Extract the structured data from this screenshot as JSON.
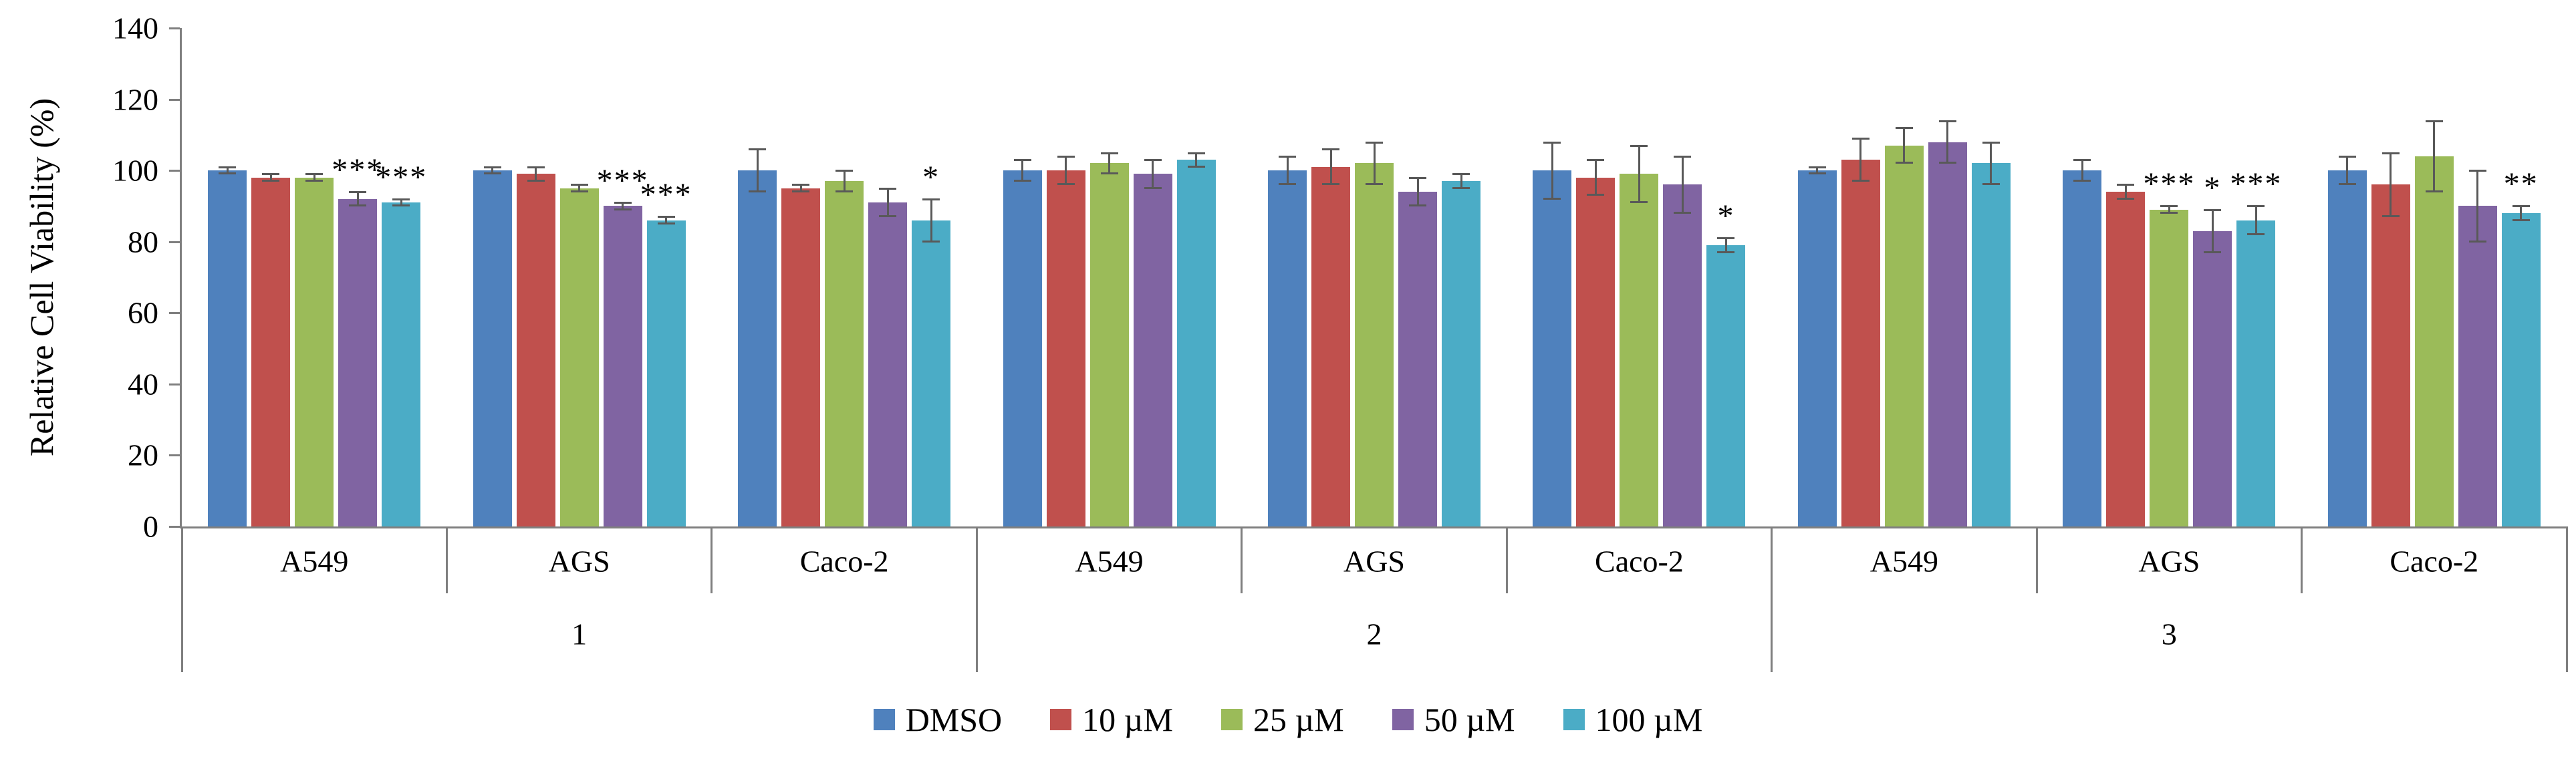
{
  "chart_data": {
    "type": "bar",
    "title": "",
    "ylabel": "Relative Cell Viability (%)",
    "xlabel": "",
    "ylim": [
      0,
      140
    ],
    "yticks": [
      0,
      20,
      40,
      60,
      80,
      100,
      120,
      140
    ],
    "grid": false,
    "legend_position": "bottom",
    "series": [
      {
        "name": "DMSO",
        "color": "#4F81BD"
      },
      {
        "name": "10 µM",
        "color": "#C0504D"
      },
      {
        "name": "25 µM",
        "color": "#9BBB59"
      },
      {
        "name": "50 µM",
        "color": "#8064A2"
      },
      {
        "name": "100 µM",
        "color": "#4BACC6"
      }
    ],
    "compounds": [
      "1",
      "2",
      "3"
    ],
    "cell_lines": [
      "A549",
      "AGS",
      "Caco-2"
    ],
    "groups": [
      {
        "compound": "1",
        "cell_line": "A549",
        "values": [
          100,
          98,
          98,
          92,
          91
        ],
        "errors": [
          1,
          1,
          1,
          2,
          1
        ],
        "sig": [
          "",
          "",
          "",
          "***",
          "***"
        ]
      },
      {
        "compound": "1",
        "cell_line": "AGS",
        "values": [
          100,
          99,
          95,
          90,
          86
        ],
        "errors": [
          1,
          2,
          1,
          1,
          1
        ],
        "sig": [
          "",
          "",
          "",
          "***",
          "***"
        ]
      },
      {
        "compound": "1",
        "cell_line": "Caco-2",
        "values": [
          100,
          95,
          97,
          91,
          86
        ],
        "errors": [
          6,
          1,
          3,
          4,
          6
        ],
        "sig": [
          "",
          "",
          "",
          "",
          "*"
        ]
      },
      {
        "compound": "2",
        "cell_line": "A549",
        "values": [
          100,
          100,
          102,
          99,
          103
        ],
        "errors": [
          3,
          4,
          3,
          4,
          2
        ],
        "sig": [
          "",
          "",
          "",
          "",
          ""
        ]
      },
      {
        "compound": "2",
        "cell_line": "AGS",
        "values": [
          100,
          101,
          102,
          94,
          97
        ],
        "errors": [
          4,
          5,
          6,
          4,
          2
        ],
        "sig": [
          "",
          "",
          "",
          "",
          ""
        ]
      },
      {
        "compound": "2",
        "cell_line": "Caco-2",
        "values": [
          100,
          98,
          99,
          96,
          79
        ],
        "errors": [
          8,
          5,
          8,
          8,
          2
        ],
        "sig": [
          "",
          "",
          "",
          "",
          "*"
        ]
      },
      {
        "compound": "3",
        "cell_line": "A549",
        "values": [
          100,
          103,
          107,
          108,
          102
        ],
        "errors": [
          1,
          6,
          5,
          6,
          6
        ],
        "sig": [
          "",
          "",
          "",
          "",
          ""
        ]
      },
      {
        "compound": "3",
        "cell_line": "AGS",
        "values": [
          100,
          94,
          89,
          83,
          86
        ],
        "errors": [
          3,
          2,
          1,
          6,
          4
        ],
        "sig": [
          "",
          "",
          "***",
          "*",
          "***"
        ]
      },
      {
        "compound": "3",
        "cell_line": "Caco-2",
        "values": [
          100,
          96,
          104,
          90,
          88
        ],
        "errors": [
          4,
          9,
          10,
          10,
          2
        ],
        "sig": [
          "",
          "",
          "",
          "",
          "**"
        ]
      }
    ],
    "colors": {
      "axis": "#7f7f7f",
      "error_bar": "#595959",
      "text": "#000000"
    }
  }
}
